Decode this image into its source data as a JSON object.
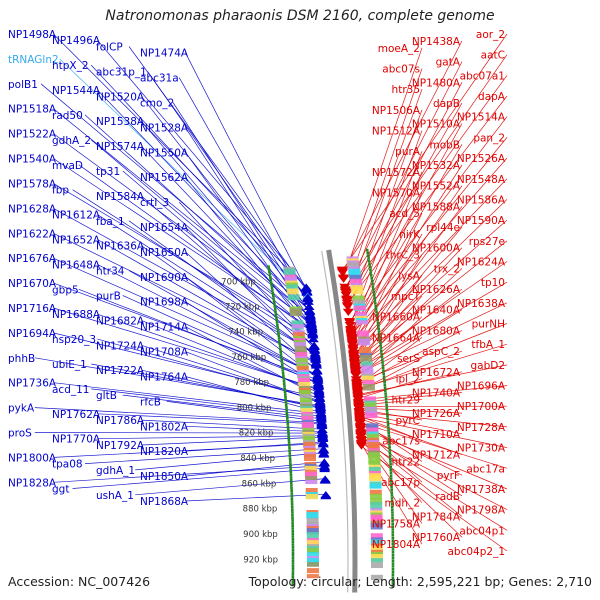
{
  "title": "Natronomonas pharaonis DSM 2160, complete genome",
  "footer": {
    "accession": "Accession: NC_007426",
    "stats": "Topology: circular; Length: 2,595,221 bp; Genes: 2,710"
  },
  "colors": {
    "forward_strand": "#0000cc",
    "reverse_strand": "#e00000",
    "rna_gene": "#33aaee",
    "backbone": "#888888",
    "tick_dots": "#228822"
  },
  "ticks": [
    {
      "label": "700 kbp",
      "kbp": 700
    },
    {
      "label": "720 kbp",
      "kbp": 720
    },
    {
      "label": "740 kbp",
      "kbp": 740
    },
    {
      "label": "760 kbp",
      "kbp": 760
    },
    {
      "label": "780 kbp",
      "kbp": 780
    },
    {
      "label": "800 kbp",
      "kbp": 800
    },
    {
      "label": "820 kbp",
      "kbp": 820
    },
    {
      "label": "840 kbp",
      "kbp": 840
    },
    {
      "label": "860 kbp",
      "kbp": 860
    },
    {
      "label": "880 kbp",
      "kbp": 880
    },
    {
      "label": "900 kbp",
      "kbp": 900
    },
    {
      "label": "920 kbp",
      "kbp": 920
    }
  ],
  "forward_genes": [
    {
      "name": "NP1498A",
      "kbp": 710.5
    },
    {
      "name": "NP1496A",
      "kbp": 710.0
    },
    {
      "name": "folCP",
      "kbp": 713.0
    },
    {
      "name": "NP1474A",
      "kbp": 713.0
    },
    {
      "name": "tRNAGln2",
      "kbp": 717.0,
      "rna": true
    },
    {
      "name": "htpX_2",
      "kbp": 718.0
    },
    {
      "name": "abc31p_1",
      "kbp": 721.0
    },
    {
      "name": "abc31a",
      "kbp": 725.0
    },
    {
      "name": "polB1",
      "kbp": 728.0
    },
    {
      "name": "NP1544A",
      "kbp": 729.0
    },
    {
      "name": "NP1520A",
      "kbp": 729.0
    },
    {
      "name": "cmo_2",
      "kbp": 731.0
    },
    {
      "name": "NP1518A",
      "kbp": 733.0
    },
    {
      "name": "rad50",
      "kbp": 734.0
    },
    {
      "name": "NP1538A",
      "kbp": 735.5
    },
    {
      "name": "NP1528A",
      "kbp": 737.0
    },
    {
      "name": "NP1522A",
      "kbp": 738.0
    },
    {
      "name": "gdhA_2",
      "kbp": 740.0
    },
    {
      "name": "NP1574A",
      "kbp": 740.5
    },
    {
      "name": "NP1550A",
      "kbp": 741.0
    },
    {
      "name": "NP1540A",
      "kbp": 743.0
    },
    {
      "name": "mvaD",
      "kbp": 745.0
    },
    {
      "name": "tp31",
      "kbp": 746.0
    },
    {
      "name": "NP1562A",
      "kbp": 747.0
    },
    {
      "name": "NP1578A",
      "kbp": 750.0
    },
    {
      "name": "fbp",
      "kbp": 755.0
    },
    {
      "name": "NP1584A",
      "kbp": 756.0
    },
    {
      "name": "crtI_3",
      "kbp": 758.0
    },
    {
      "name": "NP1628A",
      "kbp": 761.0
    },
    {
      "name": "NP1612A",
      "kbp": 762.0
    },
    {
      "name": "fba_1",
      "kbp": 763.0
    },
    {
      "name": "NP1654A",
      "kbp": 765.0
    },
    {
      "name": "NP1622A",
      "kbp": 768.0
    },
    {
      "name": "NP1652A",
      "kbp": 769.5
    },
    {
      "name": "NP1636A",
      "kbp": 774.0
    },
    {
      "name": "NP1650A",
      "kbp": 775.0
    },
    {
      "name": "NP1676A",
      "kbp": 778.0
    },
    {
      "name": "NP1648A",
      "kbp": 779.0
    },
    {
      "name": "htr34",
      "kbp": 779.5
    },
    {
      "name": "NP1690A",
      "kbp": 781.0
    },
    {
      "name": "NP1670A",
      "kbp": 782.0
    },
    {
      "name": "gbp5",
      "kbp": 784.0
    },
    {
      "name": "purB",
      "kbp": 785.0
    },
    {
      "name": "NP1698A",
      "kbp": 786.0
    },
    {
      "name": "NP1716A",
      "kbp": 789.0
    },
    {
      "name": "NP1688A",
      "kbp": 790.0
    },
    {
      "name": "NP1682A",
      "kbp": 792.0
    },
    {
      "name": "NP1714A",
      "kbp": 795.0
    },
    {
      "name": "NP1694A",
      "kbp": 796.0
    },
    {
      "name": "hsp20_3",
      "kbp": 798.0
    },
    {
      "name": "NP1724A",
      "kbp": 799.0
    },
    {
      "name": "NP1708A",
      "kbp": 800.0
    },
    {
      "name": "phhB",
      "kbp": 802.0
    },
    {
      "name": "ubiE_1",
      "kbp": 803.0
    },
    {
      "name": "NP1722A",
      "kbp": 804.0
    },
    {
      "name": "NP1764A",
      "kbp": 807.0
    },
    {
      "name": "NP1736A",
      "kbp": 808.0
    },
    {
      "name": "acd_11",
      "kbp": 810.0
    },
    {
      "name": "gltB",
      "kbp": 812.0
    },
    {
      "name": "rfcB",
      "kbp": 814.0
    },
    {
      "name": "pykA",
      "kbp": 815.0
    },
    {
      "name": "NP1762A",
      "kbp": 816.0
    },
    {
      "name": "NP1786A",
      "kbp": 820.0
    },
    {
      "name": "NP1802A",
      "kbp": 822.0
    },
    {
      "name": "proS",
      "kbp": 823.0
    },
    {
      "name": "NP1770A",
      "kbp": 825.0
    },
    {
      "name": "NP1792A",
      "kbp": 826.0
    },
    {
      "name": "NP1820A",
      "kbp": 830.0
    },
    {
      "name": "NP1800A",
      "kbp": 831.0
    },
    {
      "name": "tpa08",
      "kbp": 835.0
    },
    {
      "name": "gdhA_1",
      "kbp": 838.0
    },
    {
      "name": "NP1850A",
      "kbp": 845.0
    },
    {
      "name": "NP1828A",
      "kbp": 848.0
    },
    {
      "name": "ggt",
      "kbp": 850.0
    },
    {
      "name": "ushA_1",
      "kbp": 858.0
    },
    {
      "name": "NP1868A",
      "kbp": 870.0
    }
  ],
  "reverse_genes": [
    {
      "name": "aor_2",
      "kbp": 702.0
    },
    {
      "name": "NP1438A",
      "kbp": 704.0
    },
    {
      "name": "moeA_2",
      "kbp": 708.0
    },
    {
      "name": "aatC",
      "kbp": 715.0
    },
    {
      "name": "gatA",
      "kbp": 717.0
    },
    {
      "name": "abc07s",
      "kbp": 719.0
    },
    {
      "name": "abc07a1",
      "kbp": 721.0
    },
    {
      "name": "NP1480A",
      "kbp": 724.0
    },
    {
      "name": "htr35",
      "kbp": 725.0
    },
    {
      "name": "dapA",
      "kbp": 727.0
    },
    {
      "name": "dapB",
      "kbp": 729.0
    },
    {
      "name": "NP1506A",
      "kbp": 734.0
    },
    {
      "name": "NP1514A",
      "kbp": 741.0
    },
    {
      "name": "NP1510A",
      "kbp": 742.0
    },
    {
      "name": "NP1512A",
      "kbp": 744.0
    },
    {
      "name": "pan_2",
      "kbp": 747.0
    },
    {
      "name": "mobB",
      "kbp": 749.0
    },
    {
      "name": "purA",
      "kbp": 750.0
    },
    {
      "name": "NP1526A",
      "kbp": 751.0
    },
    {
      "name": "NP1532A",
      "kbp": 752.0
    },
    {
      "name": "NP1572A",
      "kbp": 753.0
    },
    {
      "name": "NP1548A",
      "kbp": 755.0
    },
    {
      "name": "NP1552A",
      "kbp": 757.0
    },
    {
      "name": "NP1570A",
      "kbp": 758.0
    },
    {
      "name": "NP1586A",
      "kbp": 761.0
    },
    {
      "name": "NP1588A",
      "kbp": 763.0
    },
    {
      "name": "acd_5",
      "kbp": 765.0
    },
    {
      "name": "NP1590A",
      "kbp": 766.0
    },
    {
      "name": "rpl44e",
      "kbp": 767.0
    },
    {
      "name": "nirK",
      "kbp": 769.0
    },
    {
      "name": "rps27e",
      "kbp": 771.0
    },
    {
      "name": "NP1600A",
      "kbp": 772.0
    },
    {
      "name": "thrC_3",
      "kbp": 773.0
    },
    {
      "name": "NP1624A",
      "kbp": 775.0
    },
    {
      "name": "trx_2",
      "kbp": 776.0
    },
    {
      "name": "lysA",
      "kbp": 777.0
    },
    {
      "name": "tp10",
      "kbp": 778.0
    },
    {
      "name": "NP1626A",
      "kbp": 779.0
    },
    {
      "name": "mpcT",
      "kbp": 780.0
    },
    {
      "name": "NP1638A",
      "kbp": 781.0
    },
    {
      "name": "NP1640A",
      "kbp": 782.0
    },
    {
      "name": "NP1660A",
      "kbp": 785.0
    },
    {
      "name": "purNH",
      "kbp": 787.0
    },
    {
      "name": "NP1680A",
      "kbp": 789.0
    },
    {
      "name": "NP1664A",
      "kbp": 790.0
    },
    {
      "name": "tfbA_1",
      "kbp": 792.0
    },
    {
      "name": "aspC_2",
      "kbp": 793.0
    },
    {
      "name": "serS",
      "kbp": 794.0
    },
    {
      "name": "gabD2",
      "kbp": 796.0
    },
    {
      "name": "NP1672A",
      "kbp": 797.0
    },
    {
      "name": "ipl_2",
      "kbp": 799.0
    },
    {
      "name": "NP1696A",
      "kbp": 800.0
    },
    {
      "name": "NP1740A",
      "kbp": 802.0
    },
    {
      "name": "htr29",
      "kbp": 804.0
    },
    {
      "name": "NP1700A",
      "kbp": 805.0
    },
    {
      "name": "NP1726A",
      "kbp": 806.0
    },
    {
      "name": "pyrC",
      "kbp": 807.0
    },
    {
      "name": "NP1728A",
      "kbp": 809.0
    },
    {
      "name": "NP1710A",
      "kbp": 810.0
    },
    {
      "name": "abc17s",
      "kbp": 812.0
    },
    {
      "name": "NP1730A",
      "kbp": 813.0
    },
    {
      "name": "NP1712A",
      "kbp": 814.0
    },
    {
      "name": "htr22",
      "kbp": 816.0
    },
    {
      "name": "abc17a",
      "kbp": 817.0
    },
    {
      "name": "pyrF",
      "kbp": 818.0
    },
    {
      "name": "abc17p",
      "kbp": 820.0
    },
    {
      "name": "NP1738A",
      "kbp": 821.0
    },
    {
      "name": "radB",
      "kbp": 823.0
    },
    {
      "name": "mdh_2",
      "kbp": 825.0
    },
    {
      "name": "NP1798A",
      "kbp": 826.0
    },
    {
      "name": "NP1784A",
      "kbp": 827.0
    },
    {
      "name": "NP1758A",
      "kbp": 828.0
    },
    {
      "name": "abc04p1",
      "kbp": 830.0
    },
    {
      "name": "NP1760A",
      "kbp": 831.0
    },
    {
      "name": "NP1804A",
      "kbp": 833.0
    },
    {
      "name": "abc04p2_1",
      "kbp": 835.0
    }
  ]
}
